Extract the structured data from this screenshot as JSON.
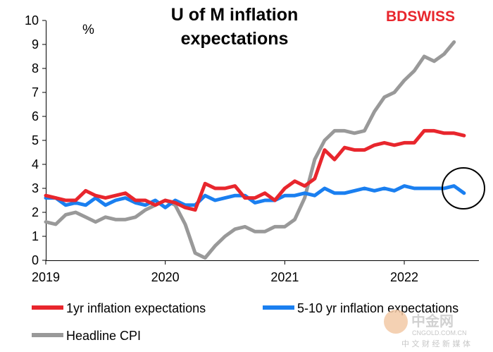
{
  "chart_data": {
    "type": "line",
    "title_lines": [
      "U of M inflation",
      "expectations"
    ],
    "unit_label": "%",
    "ylim": [
      0,
      10
    ],
    "yticks": [
      "0",
      "1",
      "2",
      "3",
      "4",
      "5",
      "6",
      "7",
      "8",
      "9",
      "10"
    ],
    "xlim": [
      0,
      43
    ],
    "xticks": [
      {
        "label": "2019",
        "x": 0
      },
      {
        "label": "2020",
        "x": 12
      },
      {
        "label": "2021",
        "x": 24
      },
      {
        "label": "2022",
        "x": 36
      }
    ],
    "grid": false,
    "legend_position": "bottom",
    "series": [
      {
        "name": "1yr inflation expectations",
        "color": "#e8262d",
        "values": [
          2.7,
          2.6,
          2.5,
          2.5,
          2.9,
          2.7,
          2.6,
          2.7,
          2.8,
          2.5,
          2.5,
          2.3,
          2.5,
          2.4,
          2.2,
          2.1,
          3.2,
          3.0,
          3.0,
          3.1,
          2.6,
          2.6,
          2.8,
          2.5,
          3.0,
          3.3,
          3.1,
          3.4,
          4.6,
          4.2,
          4.7,
          4.6,
          4.6,
          4.8,
          4.9,
          4.8,
          4.9,
          4.9,
          5.4,
          5.4,
          5.3,
          5.3,
          5.2
        ],
        "start_x": 0
      },
      {
        "name": "5-10 yr inflation expectations",
        "color": "#1a7ff0",
        "values": [
          2.6,
          2.6,
          2.3,
          2.4,
          2.3,
          2.6,
          2.3,
          2.5,
          2.6,
          2.4,
          2.3,
          2.5,
          2.2,
          2.5,
          2.3,
          2.3,
          2.7,
          2.5,
          2.6,
          2.7,
          2.7,
          2.4,
          2.5,
          2.5,
          2.7,
          2.7,
          2.8,
          2.7,
          3.0,
          2.8,
          2.8,
          2.9,
          3.0,
          2.9,
          3.0,
          2.9,
          3.1,
          3.0,
          3.0,
          3.0,
          3.0,
          3.1,
          2.8
        ],
        "start_x": 0
      },
      {
        "name": "Headline CPI",
        "color": "#999999",
        "values": [
          1.6,
          1.5,
          1.9,
          2.0,
          1.8,
          1.6,
          1.8,
          1.7,
          1.7,
          1.8,
          2.1,
          2.3,
          2.5,
          2.3,
          1.5,
          0.3,
          0.1,
          0.6,
          1.0,
          1.3,
          1.4,
          1.2,
          1.2,
          1.4,
          1.4,
          1.7,
          2.6,
          4.2,
          5.0,
          5.4,
          5.4,
          5.3,
          5.4,
          6.2,
          6.8,
          7.0,
          7.5,
          7.9,
          8.5,
          8.3,
          8.6,
          9.1
        ],
        "start_x": 0
      }
    ],
    "annotation": {
      "type": "circle",
      "around": "last points of 5-10 yr series"
    }
  },
  "brand": {
    "part1": "BD",
    "part2": "SWISS",
    "color": "#e8262d"
  },
  "watermark": {
    "big": "中金网",
    "small": "CNGOLD.COM.CN",
    "cn": "中 文 财 经 新 媒 体"
  }
}
